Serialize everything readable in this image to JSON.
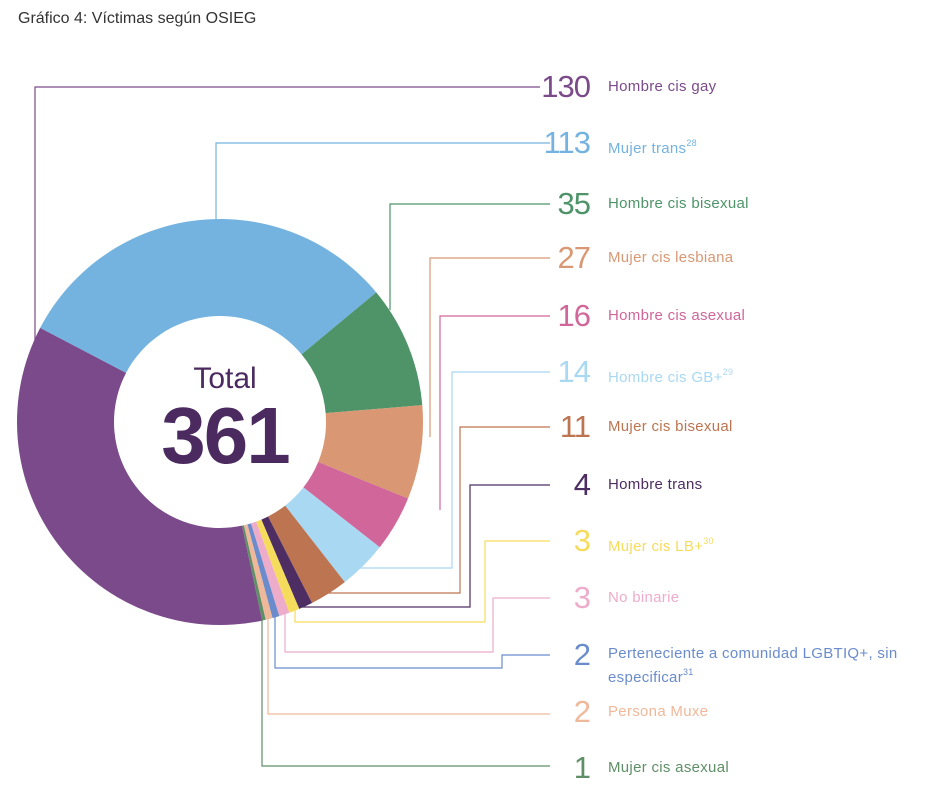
{
  "chart_data": {
    "type": "pie",
    "title": "Gráfico 4: Víctimas según OSIEG",
    "center_label": "Total",
    "total": "361",
    "slices": [
      {
        "label": "Hombre cis gay",
        "sup": "",
        "value": 130,
        "color": "#7b4a8a"
      },
      {
        "label": "Mujer trans",
        "sup": "28",
        "value": 113,
        "color": "#74b3e0"
      },
      {
        "label": "Hombre cis bisexual",
        "sup": "",
        "value": 35,
        "color": "#4e9468"
      },
      {
        "label": "Mujer cis lesbiana",
        "sup": "",
        "value": 27,
        "color": "#d99873"
      },
      {
        "label": "Hombre cis asexual",
        "sup": "",
        "value": 16,
        "color": "#d06699"
      },
      {
        "label": "Hombre cis GB+",
        "sup": "29",
        "value": 14,
        "color": "#a9d8f3"
      },
      {
        "label": "Mujer cis bisexual",
        "sup": "",
        "value": 11,
        "color": "#bd7450"
      },
      {
        "label": "Hombre trans",
        "sup": "",
        "value": 4,
        "color": "#4d2d62"
      },
      {
        "label": "Mujer cis LB+",
        "sup": "30",
        "value": 3,
        "color": "#f5dc5c"
      },
      {
        "label": "No binarie",
        "sup": "",
        "value": 3,
        "color": "#eeaccb"
      },
      {
        "label": "Perteneciente a comunidad LGBTIQ+, sin especificar",
        "sup": "31",
        "value": 2,
        "color": "#6a8ccc"
      },
      {
        "label": "Persona Muxe",
        "sup": "",
        "value": 2,
        "color": "#f0b89a"
      },
      {
        "label": "Mujer cis asexual",
        "sup": "",
        "value": 1,
        "color": "#5e8f66"
      }
    ]
  }
}
